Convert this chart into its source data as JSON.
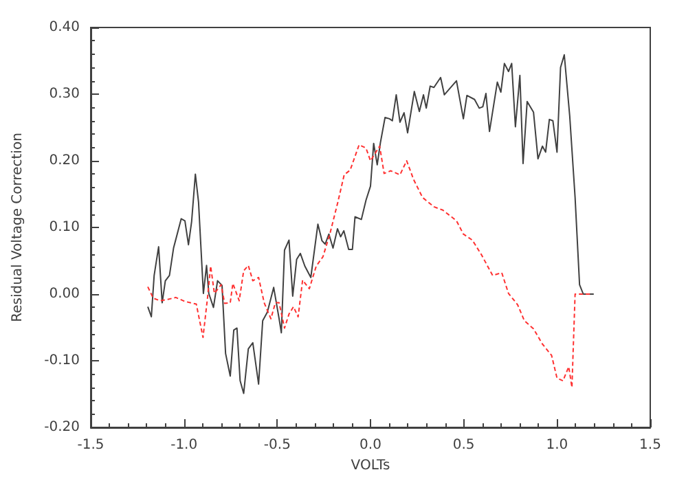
{
  "chart_data": {
    "type": "line",
    "xlabel": "VOLTs",
    "ylabel": "Residual Voltage Correction",
    "xlim": [
      -1.5,
      1.5
    ],
    "ylim": [
      -0.2,
      0.4
    ],
    "xticks": [
      {
        "value": -1.5,
        "label": "-1.5"
      },
      {
        "value": -1.0,
        "label": "-1.0"
      },
      {
        "value": -0.5,
        "label": "-0.5"
      },
      {
        "value": 0,
        "label": "0.0"
      },
      {
        "value": 0.5,
        "label": "0.5"
      },
      {
        "value": 1.0,
        "label": "1.0"
      },
      {
        "value": 1.5,
        "label": "1.5"
      }
    ],
    "yticks": [
      {
        "value": -0.2,
        "label": "-0.20"
      },
      {
        "value": -0.1,
        "label": "-0.10"
      },
      {
        "value": 0,
        "label": "0.00"
      },
      {
        "value": 0.1,
        "label": "0.10"
      },
      {
        "value": 0.2,
        "label": "0.20"
      },
      {
        "value": 0.3,
        "label": "0.30"
      },
      {
        "value": 0.4,
        "label": "0.40"
      }
    ],
    "grid": false,
    "marker": "none",
    "series": [
      {
        "color": "#404040",
        "line_style": "solid",
        "x": [
          -1.194,
          -1.175,
          -1.16,
          -1.136,
          -1.117,
          -1.1,
          -1.078,
          -1.056,
          -1.015,
          -0.995,
          -0.976,
          -0.959,
          -0.939,
          -0.922,
          -0.896,
          -0.879,
          -0.867,
          -0.842,
          -0.82,
          -0.796,
          -0.777,
          -0.752,
          -0.733,
          -0.716,
          -0.699,
          -0.68,
          -0.655,
          -0.631,
          -0.6,
          -0.578,
          -0.553,
          -0.519,
          -0.49,
          -0.478,
          -0.461,
          -0.437,
          -0.417,
          -0.396,
          -0.376,
          -0.352,
          -0.32,
          -0.282,
          -0.26,
          -0.243,
          -0.223,
          -0.201,
          -0.177,
          -0.16,
          -0.143,
          -0.117,
          -0.097,
          -0.083,
          -0.049,
          -0.024,
          0.0,
          0.017,
          0.036,
          0.053,
          0.078,
          0.102,
          0.117,
          0.138,
          0.158,
          0.18,
          0.199,
          0.235,
          0.262,
          0.284,
          0.299,
          0.32,
          0.34,
          0.376,
          0.396,
          0.461,
          0.498,
          0.517,
          0.558,
          0.583,
          0.602,
          0.619,
          0.638,
          0.68,
          0.699,
          0.718,
          0.74,
          0.757,
          0.777,
          0.801,
          0.818,
          0.84,
          0.874,
          0.898,
          0.922,
          0.939,
          0.959,
          0.978,
          1.0,
          1.019,
          1.039,
          1.068,
          1.097,
          1.121,
          1.141,
          1.197
        ],
        "values": [
          -0.019,
          -0.034,
          0.028,
          0.071,
          -0.013,
          0.02,
          0.028,
          0.069,
          0.113,
          0.11,
          0.074,
          0.109,
          0.18,
          0.138,
          0.001,
          0.043,
          0.001,
          -0.02,
          0.02,
          0.013,
          -0.089,
          -0.123,
          -0.054,
          -0.051,
          -0.13,
          -0.149,
          -0.082,
          -0.073,
          -0.135,
          -0.04,
          -0.027,
          0.01,
          -0.037,
          -0.058,
          0.066,
          0.081,
          -0.003,
          0.052,
          0.061,
          0.042,
          0.025,
          0.105,
          0.08,
          0.075,
          0.09,
          0.069,
          0.098,
          0.086,
          0.095,
          0.067,
          0.067,
          0.116,
          0.112,
          0.141,
          0.162,
          0.226,
          0.194,
          0.227,
          0.265,
          0.263,
          0.26,
          0.299,
          0.258,
          0.272,
          0.242,
          0.304,
          0.274,
          0.299,
          0.279,
          0.312,
          0.31,
          0.325,
          0.299,
          0.32,
          0.263,
          0.298,
          0.292,
          0.279,
          0.281,
          0.301,
          0.244,
          0.318,
          0.303,
          0.346,
          0.334,
          0.346,
          0.251,
          0.328,
          0.196,
          0.289,
          0.273,
          0.203,
          0.222,
          0.213,
          0.262,
          0.26,
          0.213,
          0.34,
          0.359,
          0.268,
          0.145,
          0.014,
          0.0,
          0.0
        ]
      },
      {
        "color": "#ff3030",
        "line_style": "dashed",
        "x": [
          -1.194,
          -1.165,
          -1.129,
          -1.087,
          -1.044,
          -0.995,
          -0.934,
          -0.898,
          -0.874,
          -0.857,
          -0.837,
          -0.801,
          -0.782,
          -0.752,
          -0.738,
          -0.704,
          -0.68,
          -0.655,
          -0.631,
          -0.6,
          -0.57,
          -0.534,
          -0.51,
          -0.49,
          -0.461,
          -0.437,
          -0.413,
          -0.388,
          -0.364,
          -0.328,
          -0.291,
          -0.255,
          -0.218,
          -0.175,
          -0.141,
          -0.109,
          -0.061,
          -0.024,
          0.0,
          0.049,
          0.073,
          0.109,
          0.158,
          0.194,
          0.231,
          0.279,
          0.34,
          0.388,
          0.461,
          0.498,
          0.546,
          0.595,
          0.655,
          0.704,
          0.74,
          0.789,
          0.825,
          0.874,
          0.922,
          0.971,
          1.0,
          1.032,
          1.063,
          1.08,
          1.097,
          1.153,
          1.189
        ],
        "values": [
          0.011,
          -0.006,
          -0.01,
          -0.008,
          -0.005,
          -0.011,
          -0.015,
          -0.065,
          -0.006,
          0.042,
          0.001,
          0.014,
          -0.014,
          -0.013,
          0.016,
          -0.01,
          0.035,
          0.043,
          0.02,
          0.025,
          -0.013,
          -0.037,
          -0.013,
          -0.013,
          -0.051,
          -0.03,
          -0.019,
          -0.034,
          0.021,
          0.008,
          0.042,
          0.056,
          0.09,
          0.138,
          0.179,
          0.186,
          0.224,
          0.219,
          0.2,
          0.222,
          0.181,
          0.185,
          0.179,
          0.2,
          0.172,
          0.145,
          0.131,
          0.126,
          0.11,
          0.09,
          0.081,
          0.059,
          0.028,
          0.032,
          0.001,
          -0.016,
          -0.04,
          -0.052,
          -0.075,
          -0.092,
          -0.126,
          -0.13,
          -0.109,
          -0.14,
          0.0,
          0.0,
          0.0
        ]
      }
    ]
  }
}
